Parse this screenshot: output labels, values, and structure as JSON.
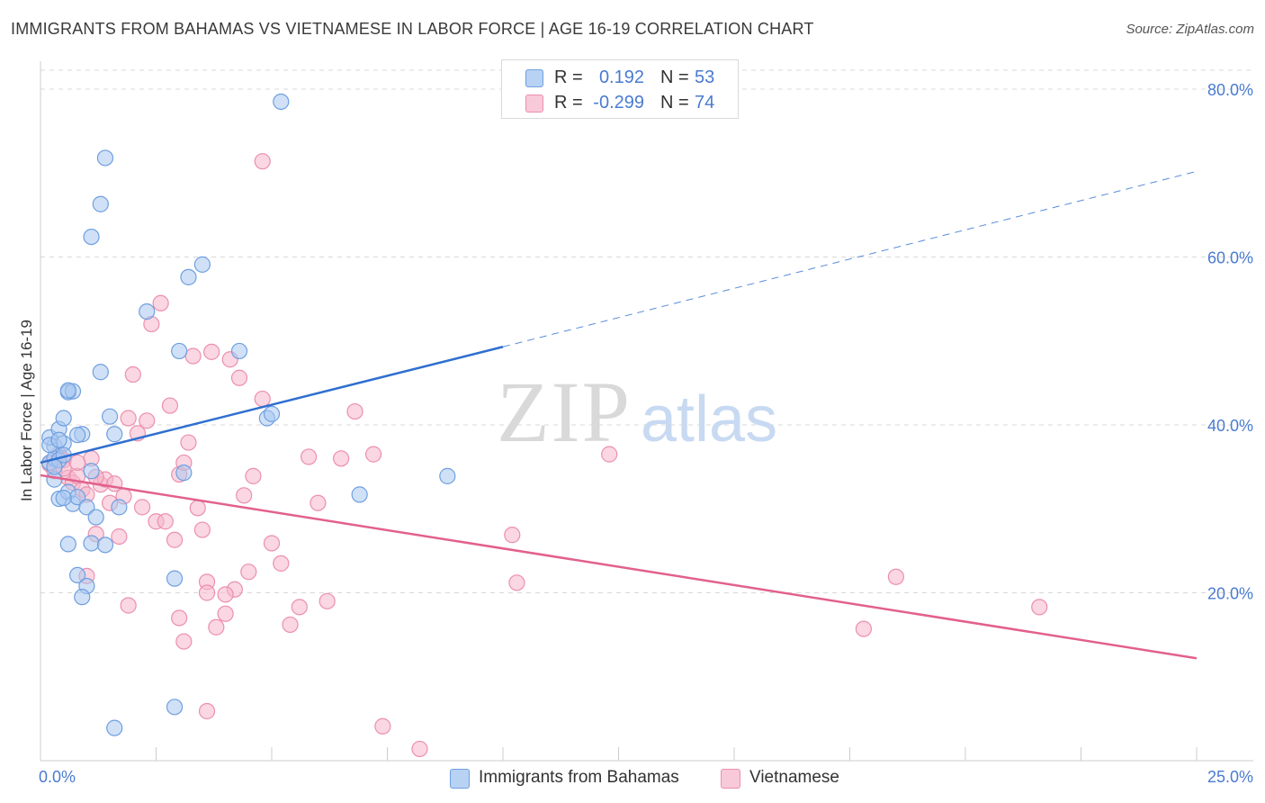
{
  "title": "IMMIGRANTS FROM BAHAMAS VS VIETNAMESE IN LABOR FORCE | AGE 16-19 CORRELATION CHART",
  "source": "Source: ZipAtlas.com",
  "watermark": {
    "zip": "ZIP",
    "atlas": "atlas"
  },
  "legend": {
    "rows": [
      {
        "r_label": "R =",
        "r_value": "0.192",
        "n_label": "N =",
        "n_value": "53"
      },
      {
        "r_label": "R =",
        "r_value": "-0.299",
        "n_label": "N =",
        "n_value": "74"
      }
    ]
  },
  "colors": {
    "blue_fill": "#a9c8f0",
    "blue_stroke": "#6f9fe0",
    "blue_line": "#2f6fd0",
    "pink_fill": "#f5b6cb",
    "pink_stroke": "#ec8fae",
    "pink_line": "#e2608e",
    "tick_text": "#4a7bd0",
    "grid": "#d8d8d8"
  },
  "chart_data": {
    "type": "scatter",
    "title": "IMMIGRANTS FROM BAHAMAS VS VIETNAMESE IN LABOR FORCE | AGE 16-19 CORRELATION CHART",
    "xlabel": "",
    "ylabel": "In Labor Force | Age 16-19",
    "xlim": [
      0,
      25
    ],
    "ylim": [
      0,
      83
    ],
    "x_tick_labels": [
      "0.0%",
      "25.0%"
    ],
    "y_ticks": [
      20,
      40,
      60,
      80
    ],
    "y_tick_labels": [
      "20.0%",
      "40.0%",
      "60.0%",
      "80.0%"
    ],
    "grid": true,
    "legend_position": "top-center",
    "series": [
      {
        "name": "Immigrants from Bahamas",
        "color": "#a9c8f0",
        "R": 0.192,
        "N": 53,
        "trend": {
          "x0": 0,
          "y0": 35.5,
          "x_solid_end": 10,
          "y_solid_end": 49.3,
          "x1": 25,
          "y1": 70.2
        },
        "points": [
          [
            0.2,
            35.5
          ],
          [
            0.3,
            37.5
          ],
          [
            0.2,
            38.5
          ],
          [
            0.4,
            39.5
          ],
          [
            0.3,
            36
          ],
          [
            0.5,
            40.8
          ],
          [
            0.6,
            43.9
          ],
          [
            0.7,
            44
          ],
          [
            0.9,
            38.9
          ],
          [
            0.5,
            37.8
          ],
          [
            0.4,
            31.2
          ],
          [
            0.6,
            32
          ],
          [
            0.7,
            30.6
          ],
          [
            0.8,
            31.4
          ],
          [
            1,
            30.2
          ],
          [
            1.2,
            29
          ],
          [
            0.6,
            25.8
          ],
          [
            1.1,
            25.9
          ],
          [
            1.4,
            25.7
          ],
          [
            0.8,
            22.1
          ],
          [
            1,
            20.8
          ],
          [
            0.9,
            19.5
          ],
          [
            1.3,
            46.3
          ],
          [
            1.5,
            41
          ],
          [
            1.6,
            38.9
          ],
          [
            1.7,
            30.2
          ],
          [
            1.1,
            34.5
          ],
          [
            1.3,
            66.3
          ],
          [
            1.1,
            62.4
          ],
          [
            1.4,
            71.8
          ],
          [
            2.3,
            53.5
          ],
          [
            3.2,
            57.6
          ],
          [
            3.5,
            59.1
          ],
          [
            3,
            48.8
          ],
          [
            4.3,
            48.8
          ],
          [
            3.1,
            34.3
          ],
          [
            4.9,
            40.8
          ],
          [
            5,
            41.3
          ],
          [
            2.9,
            21.7
          ],
          [
            6.9,
            31.7
          ],
          [
            8.8,
            33.9
          ],
          [
            5.2,
            78.5
          ],
          [
            2.9,
            6.4
          ],
          [
            1.6,
            3.9
          ],
          [
            0.3,
            33.5
          ],
          [
            0.4,
            35.8
          ],
          [
            0.2,
            37.6
          ],
          [
            0.5,
            36.4
          ],
          [
            0.4,
            38.2
          ],
          [
            0.3,
            35
          ],
          [
            0.8,
            38.8
          ],
          [
            0.6,
            44.1
          ],
          [
            0.5,
            31.3
          ]
        ]
      },
      {
        "name": "Vietnamese",
        "color": "#f5b6cb",
        "R": -0.299,
        "N": 74,
        "trend": {
          "x0": 0,
          "y0": 34,
          "x1": 25,
          "y1": 12.2
        },
        "points": [
          [
            0.2,
            35.3
          ],
          [
            0.3,
            34.5
          ],
          [
            0.4,
            36.5
          ],
          [
            0.5,
            35.8
          ],
          [
            0.6,
            33.7
          ],
          [
            0.7,
            33.1
          ],
          [
            0.8,
            33.9
          ],
          [
            0.9,
            32.3
          ],
          [
            1,
            31.7
          ],
          [
            1.1,
            36
          ],
          [
            1.2,
            27
          ],
          [
            1.3,
            32.9
          ],
          [
            1.4,
            33.5
          ],
          [
            1.5,
            30.7
          ],
          [
            1.6,
            33
          ],
          [
            1.7,
            26.7
          ],
          [
            1.8,
            31.5
          ],
          [
            1.9,
            40.8
          ],
          [
            2,
            46
          ],
          [
            2.1,
            39
          ],
          [
            2.2,
            30.2
          ],
          [
            2.3,
            40.5
          ],
          [
            2.4,
            52
          ],
          [
            2.5,
            28.5
          ],
          [
            2.6,
            54.5
          ],
          [
            2.7,
            28.5
          ],
          [
            2.8,
            42.3
          ],
          [
            2.9,
            26.3
          ],
          [
            3,
            34.1
          ],
          [
            3.1,
            35.5
          ],
          [
            3.2,
            37.9
          ],
          [
            3.3,
            48.2
          ],
          [
            3.4,
            30.1
          ],
          [
            3.5,
            27.5
          ],
          [
            3.6,
            21.3
          ],
          [
            3.7,
            48.7
          ],
          [
            3.8,
            15.9
          ],
          [
            4,
            17.5
          ],
          [
            4.1,
            47.8
          ],
          [
            4.2,
            20.4
          ],
          [
            4.3,
            45.6
          ],
          [
            4.4,
            31.6
          ],
          [
            4.5,
            22.5
          ],
          [
            4.6,
            33.9
          ],
          [
            4.8,
            43.1
          ],
          [
            5,
            25.9
          ],
          [
            5.2,
            23.5
          ],
          [
            5.4,
            16.2
          ],
          [
            5.6,
            18.3
          ],
          [
            5.8,
            36.2
          ],
          [
            6,
            30.7
          ],
          [
            6.2,
            19
          ],
          [
            6.5,
            36
          ],
          [
            1,
            22
          ],
          [
            1.9,
            18.5
          ],
          [
            3,
            17
          ],
          [
            3.6,
            20
          ],
          [
            3.1,
            14.2
          ],
          [
            4,
            19.8
          ],
          [
            4.8,
            71.4
          ],
          [
            6.8,
            41.6
          ],
          [
            7.2,
            36.5
          ],
          [
            10.2,
            26.9
          ],
          [
            10.3,
            21.2
          ],
          [
            12.3,
            36.5
          ],
          [
            17.8,
            15.7
          ],
          [
            18.5,
            21.9
          ],
          [
            21.6,
            18.3
          ],
          [
            3.6,
            5.9
          ],
          [
            7.4,
            4.1
          ],
          [
            8.2,
            1.4
          ],
          [
            0.5,
            34.8
          ],
          [
            1.2,
            33.8
          ],
          [
            0.8,
            35.5
          ]
        ]
      }
    ]
  },
  "bottom_legend": {
    "series1": "Immigrants from Bahamas",
    "series2": "Vietnamese"
  }
}
